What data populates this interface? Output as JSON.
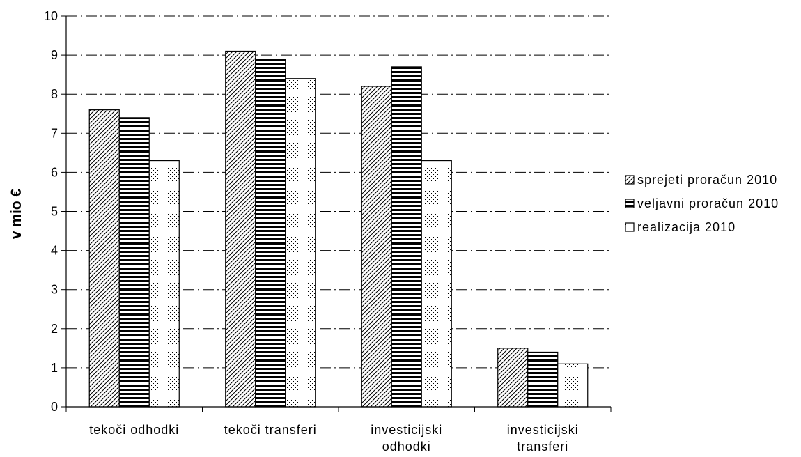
{
  "chart_data": {
    "type": "bar",
    "title": "",
    "xlabel": "",
    "ylabel": "v mio €",
    "ylim": [
      0,
      10
    ],
    "yticks": [
      0,
      1,
      2,
      3,
      4,
      5,
      6,
      7,
      8,
      9,
      10
    ],
    "grid": true,
    "legend_position": "right",
    "categories": [
      [
        "tekoči odhodki"
      ],
      [
        "tekoči transferi"
      ],
      [
        "investicijski",
        "odhodki"
      ],
      [
        "investicijski",
        "transferi"
      ]
    ],
    "series": [
      {
        "name": "sprejeti proračun 2010",
        "pattern": "diagonal",
        "values": [
          7.6,
          9.1,
          8.2,
          1.5
        ]
      },
      {
        "name": "veljavni proračun 2010",
        "pattern": "horizontal",
        "values": [
          7.4,
          8.9,
          8.7,
          1.4
        ]
      },
      {
        "name": "realizacija 2010",
        "pattern": "dots",
        "values": [
          6.3,
          8.4,
          6.3,
          1.1
        ]
      }
    ],
    "colors": {
      "stroke": "#000000",
      "background": "#ffffff"
    }
  }
}
